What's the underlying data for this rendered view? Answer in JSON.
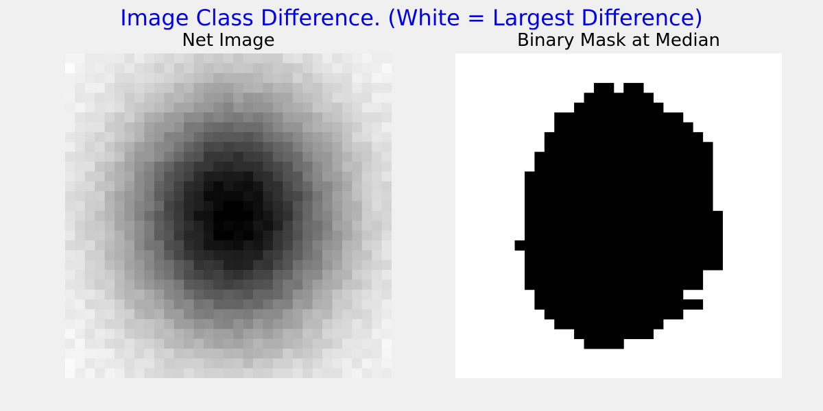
{
  "title": "Image Class Difference. (White = Largest Difference)",
  "title_color": "#0000e6",
  "background_color": "#f0f0f0",
  "chart_data": [
    {
      "type": "heatmap",
      "title": "Net Image",
      "colormap": "gray",
      "axes": "off",
      "rows": 33,
      "cols": 33,
      "model": {
        "description_values": "intensity 0 (black) to 255 (white)",
        "center_row": 16,
        "center_col": 16.5,
        "sigma_row": 8.5,
        "sigma_col": 7.5,
        "peak_depth": 250,
        "base": 248
      }
    },
    {
      "type": "heatmap",
      "title": "Binary Mask at Median",
      "colormap": "binary",
      "axes": "off",
      "rows": 33,
      "cols": 33,
      "black_runs_by_row": [
        [],
        [],
        [],
        [
          [
            14,
            15
          ],
          [
            17,
            18
          ]
        ],
        [
          [
            13,
            16
          ],
          [
            17,
            19
          ]
        ],
        [
          [
            12,
            20
          ]
        ],
        [
          [
            10,
            22
          ]
        ],
        [
          [
            10,
            23
          ]
        ],
        [
          [
            9,
            24
          ]
        ],
        [
          [
            9,
            25
          ]
        ],
        [
          [
            8,
            25
          ]
        ],
        [
          [
            8,
            25
          ]
        ],
        [
          [
            7,
            25
          ]
        ],
        [
          [
            7,
            25
          ]
        ],
        [
          [
            7,
            25
          ]
        ],
        [
          [
            7,
            25
          ]
        ],
        [
          [
            7,
            26
          ]
        ],
        [
          [
            7,
            26
          ]
        ],
        [
          [
            7,
            26
          ]
        ],
        [
          [
            6,
            26
          ]
        ],
        [
          [
            7,
            26
          ]
        ],
        [
          [
            7,
            26
          ]
        ],
        [
          [
            7,
            24
          ]
        ],
        [
          [
            7,
            24
          ]
        ],
        [
          [
            8,
            22
          ]
        ],
        [
          [
            8,
            24
          ]
        ],
        [
          [
            9,
            22
          ]
        ],
        [
          [
            10,
            20
          ]
        ],
        [
          [
            12,
            19
          ]
        ],
        [
          [
            13,
            16
          ]
        ],
        [],
        [],
        []
      ]
    }
  ]
}
